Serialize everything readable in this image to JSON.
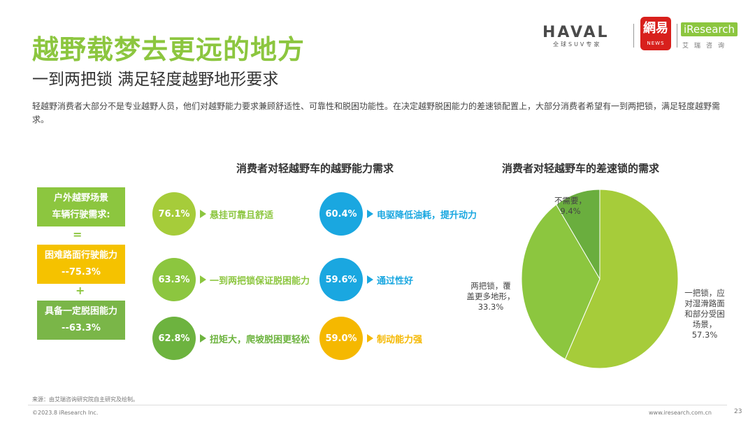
{
  "header": {
    "title": "越野载梦去更远的地方",
    "subtitle": "一到两把锁 满足轻度越野地形要求",
    "description": "轻越野消费者大部分不是专业越野人员，他们对越野能力要求兼顾舒适性、可靠性和脱困功能性。在决定越野脱困能力的差速锁配置上，大部分消费者希望有一到两把锁，满足轻度越野需求。"
  },
  "logos": {
    "haval": "HAVAL",
    "haval_sub": "全球SUV专家",
    "netease": "網易",
    "netease_sub": "NEWS",
    "iresearch": "iResearch",
    "iresearch_sub": "艾瑞咨询"
  },
  "left_panel": {
    "scenario_line1": "户外越野场景",
    "scenario_line2": "车辆行驶需求:",
    "equals": "=",
    "req1_line1": "困难路面行驶能力",
    "req1_line2": "--75.3%",
    "plus": "+",
    "req2_line1": "具备一定脱困能力",
    "req2_line2": "--63.3%"
  },
  "chart_data": [
    {
      "type": "bar",
      "title": "消费者对轻越野车的越野能力需求",
      "categories": [
        "悬挂可靠且舒适",
        "一到两把锁保证脱困能力",
        "扭矩大，爬坡脱困更轻松",
        "电驱降低油耗，提升动力",
        "通过性好",
        "制动能力强"
      ],
      "values": [
        76.1,
        63.3,
        62.8,
        60.4,
        59.6,
        59.0
      ],
      "labels": [
        "76.1%",
        "63.3%",
        "62.8%",
        "60.4%",
        "59.6%",
        "59.0%"
      ],
      "colors": [
        "#a6cc3a",
        "#8cc63f",
        "#6db33f",
        "#1aa7e0",
        "#1aa7e0",
        "#f5b800"
      ]
    },
    {
      "type": "pie",
      "title": "消费者对轻越野车的差速锁的需求",
      "slices": [
        {
          "label": "一把锁，应对湿滑路面和部分受困场景，",
          "value": 57.3,
          "pct": "57.3%",
          "color": "#a6cc3a"
        },
        {
          "label": "两把锁，覆盖更多地形，",
          "value": 33.3,
          "pct": "33.3%",
          "color": "#8cc63f"
        },
        {
          "label": "不需要，",
          "value": 9.4,
          "pct": "9.4%",
          "color": "#6aae3e"
        }
      ]
    }
  ],
  "footer": {
    "source": "来源：由艾瑞咨询研究院自主研究及绘制。",
    "copyright": "©2023.8 iResearch Inc.",
    "website": "www.iresearch.com.cn",
    "page": "23"
  }
}
